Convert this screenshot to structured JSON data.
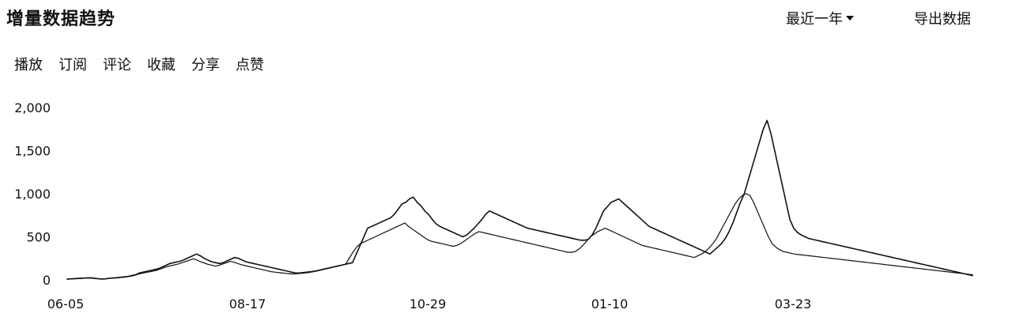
{
  "header": {
    "title": "增量数据趋势",
    "range_label": "最近一年",
    "export_label": "导出数据"
  },
  "tabs": [
    {
      "label": "播放"
    },
    {
      "label": "订阅"
    },
    {
      "label": "评论"
    },
    {
      "label": "收藏"
    },
    {
      "label": "分享"
    },
    {
      "label": "点赞"
    }
  ],
  "chart_data": {
    "type": "line",
    "title": "",
    "xlabel": "",
    "ylabel": "",
    "x_tick_labels": [
      "06-05",
      "08-17",
      "10-29",
      "01-10",
      "03-23"
    ],
    "y_tick_labels": [
      "0",
      "500",
      "1,000",
      "1,500",
      "2,000"
    ],
    "ylim": [
      0,
      2000
    ],
    "grid": false,
    "legend": "none",
    "series": [
      {
        "color": "#111111",
        "values": [
          10,
          12,
          15,
          18,
          20,
          22,
          25,
          20,
          15,
          10,
          12,
          18,
          22,
          25,
          30,
          35,
          40,
          50,
          60,
          80,
          90,
          100,
          110,
          120,
          130,
          150,
          170,
          190,
          200,
          210,
          220,
          240,
          260,
          280,
          300,
          280,
          250,
          230,
          210,
          200,
          190,
          200,
          220,
          240,
          260,
          250,
          230,
          210,
          200,
          190,
          180,
          170,
          160,
          150,
          140,
          130,
          120,
          110,
          100,
          90,
          80,
          80,
          85,
          90,
          95,
          100,
          110,
          120,
          130,
          140,
          150,
          160,
          170,
          180,
          190,
          200,
          300,
          400,
          500,
          600,
          620,
          640,
          660,
          680,
          700,
          720,
          760,
          820,
          880,
          900,
          940,
          960,
          900,
          860,
          800,
          760,
          700,
          650,
          620,
          600,
          580,
          560,
          540,
          520,
          500,
          520,
          560,
          600,
          650,
          700,
          760,
          800,
          780,
          760,
          740,
          720,
          700,
          680,
          660,
          640,
          620,
          600,
          590,
          580,
          570,
          560,
          550,
          540,
          530,
          520,
          510,
          500,
          490,
          480,
          470,
          460,
          460,
          470,
          520,
          600,
          700,
          800,
          850,
          900,
          920,
          940,
          900,
          860,
          820,
          780,
          740,
          700,
          660,
          620,
          600,
          580,
          560,
          540,
          520,
          500,
          480,
          460,
          440,
          420,
          400,
          380,
          360,
          340,
          320,
          300,
          340,
          380,
          420,
          480,
          560,
          660,
          780,
          900,
          1000,
          1150,
          1300,
          1450,
          1600,
          1750,
          1850,
          1700,
          1500,
          1300,
          1100,
          900,
          700,
          600,
          550,
          520,
          500,
          480,
          470,
          460,
          450,
          440,
          430,
          420,
          410,
          400,
          390,
          380,
          370,
          360,
          350,
          340,
          330,
          320,
          310,
          300,
          290,
          280,
          270,
          260,
          250,
          240,
          230,
          220,
          210,
          200,
          190,
          180,
          170,
          160,
          150,
          140,
          130,
          120,
          110,
          100,
          90,
          80,
          70,
          60,
          50
        ]
      },
      {
        "color": "#111111",
        "values": [
          8,
          10,
          12,
          15,
          17,
          20,
          22,
          18,
          14,
          10,
          11,
          16,
          20,
          22,
          26,
          30,
          35,
          42,
          50,
          65,
          75,
          85,
          92,
          100,
          110,
          125,
          140,
          155,
          165,
          175,
          185,
          200,
          215,
          230,
          245,
          230,
          210,
          195,
          180,
          170,
          160,
          170,
          185,
          200,
          215,
          205,
          190,
          175,
          165,
          155,
          145,
          135,
          125,
          115,
          105,
          95,
          90,
          85,
          80,
          75,
          70,
          70,
          72,
          75,
          80,
          85,
          92,
          100,
          110,
          120,
          130,
          140,
          150,
          160,
          170,
          180,
          250,
          320,
          380,
          420,
          440,
          460,
          480,
          500,
          520,
          540,
          560,
          580,
          600,
          620,
          640,
          660,
          620,
          590,
          560,
          530,
          500,
          470,
          450,
          440,
          430,
          420,
          410,
          400,
          390,
          400,
          420,
          450,
          480,
          510,
          540,
          560,
          550,
          540,
          530,
          520,
          510,
          500,
          490,
          480,
          470,
          460,
          450,
          440,
          430,
          420,
          410,
          400,
          390,
          380,
          370,
          360,
          350,
          340,
          330,
          320,
          320,
          330,
          360,
          400,
          450,
          500,
          530,
          560,
          580,
          600,
          580,
          560,
          540,
          520,
          500,
          480,
          460,
          440,
          420,
          400,
          390,
          380,
          370,
          360,
          350,
          340,
          330,
          320,
          310,
          300,
          290,
          280,
          270,
          260,
          280,
          300,
          330,
          370,
          420,
          480,
          560,
          640,
          720,
          800,
          880,
          940,
          980,
          1000,
          980,
          900,
          800,
          700,
          600,
          500,
          420,
          380,
          350,
          330,
          320,
          310,
          300,
          295,
          290,
          285,
          280,
          275,
          270,
          265,
          260,
          255,
          250,
          245,
          240,
          235,
          230,
          225,
          220,
          215,
          210,
          205,
          200,
          195,
          190,
          185,
          180,
          175,
          170,
          165,
          160,
          155,
          150,
          145,
          140,
          135,
          130,
          125,
          120,
          115,
          110,
          105,
          100,
          95,
          90,
          85,
          80,
          75,
          70,
          65,
          60
        ]
      }
    ]
  }
}
